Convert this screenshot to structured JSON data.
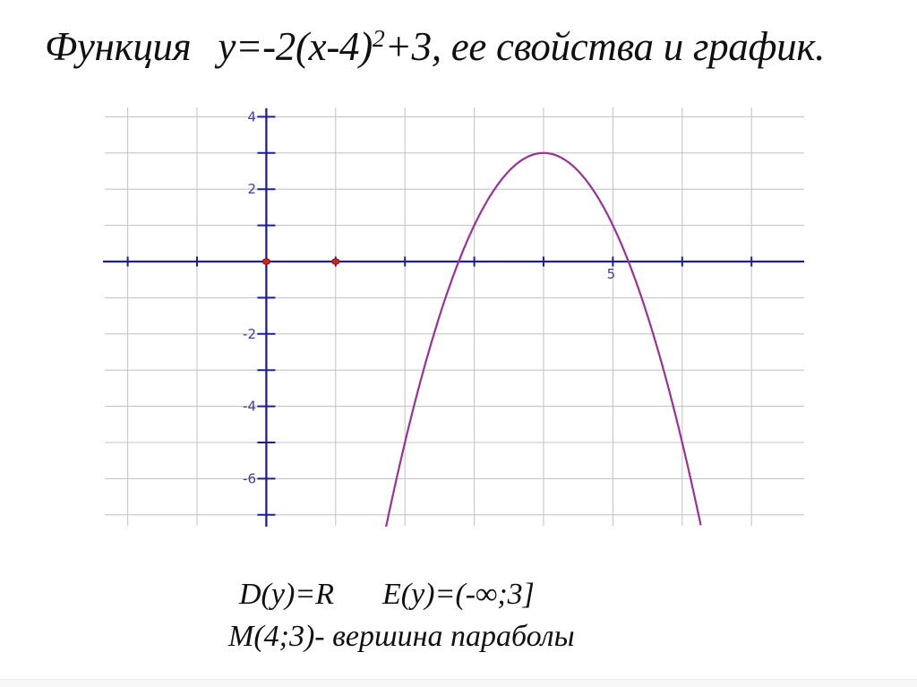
{
  "title": {
    "prefix": "Функция",
    "formula_base": "y=-2(x-4)",
    "formula_sup": "2",
    "formula_tail": "+3, ее свойства и график."
  },
  "properties": {
    "domain": "D(y)=R",
    "range": "E(y)=(-∞;3]",
    "vertex_note": "M(4;3)- вершина параболы"
  },
  "chart_data": {
    "type": "line",
    "title": "",
    "function": {
      "expression": "y = -2(x-4)^2 + 3",
      "a": -2,
      "h": 4,
      "k": 3
    },
    "vertex": [
      4,
      3
    ],
    "x_intercepts": [
      2.78,
      5.22
    ],
    "marked_points": [
      [
        0,
        0
      ],
      [
        1,
        0
      ]
    ],
    "x_axis": {
      "range": [
        -2,
        7
      ],
      "tick_step": 1,
      "labels": [
        {
          "value": 5,
          "text": "5"
        }
      ]
    },
    "y_axis": {
      "range": [
        -7,
        4
      ],
      "tick_step": 1,
      "labels": [
        {
          "value": 4,
          "text": "4"
        },
        {
          "value": 2,
          "text": "2"
        },
        {
          "value": -2,
          "text": "-2"
        },
        {
          "value": -4,
          "text": "-4"
        },
        {
          "value": -6,
          "text": "-6"
        }
      ]
    },
    "grid": true,
    "legend": false,
    "colors": {
      "curve": "#993297",
      "axis": "#1e1e96",
      "grid": "#c6c6c6",
      "tick_label": "#40409e",
      "point_fill": "#d8231a",
      "point_stroke": "#7c150c"
    }
  }
}
